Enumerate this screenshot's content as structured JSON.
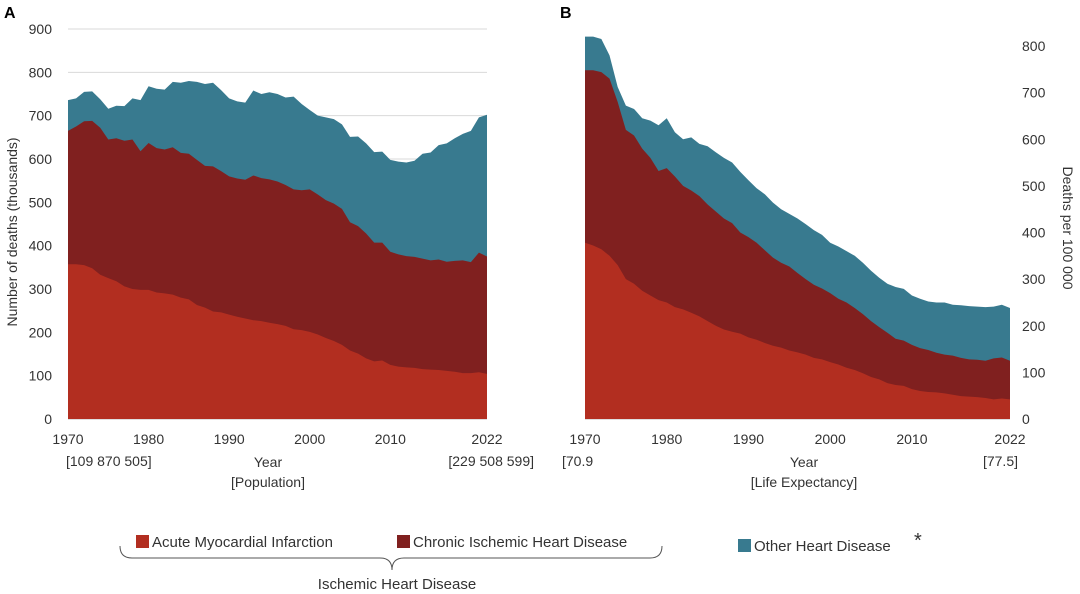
{
  "colors": {
    "acute": "#b22e20",
    "chronic": "#80201f",
    "other": "#387a8f",
    "text": "#333333",
    "grid": "#d9d9d9"
  },
  "legend": {
    "acute": "Acute Myocardial Infarction",
    "chronic": "Chronic Ischemic Heart Disease",
    "other": "Other Heart Disease",
    "other_mark": "*",
    "group": "Ischemic Heart Disease"
  },
  "chart_data": [
    {
      "panel": "A",
      "type": "area",
      "stacked": true,
      "ylabel": "Number of deaths (thousands)",
      "xlabel": "Year",
      "xlabel2": "[Population]",
      "x_tick_labels": [
        "1970",
        "1980",
        "1990",
        "2000",
        "2010",
        "2022"
      ],
      "x_end_labels": {
        "start": "[109 870 505]",
        "end": "[229 508 599]"
      },
      "y_ticks": [
        "0",
        "100",
        "200",
        "300",
        "400",
        "500",
        "600",
        "700",
        "800",
        "900"
      ],
      "ylim": [
        0,
        900
      ],
      "xlim": [
        1970,
        2022
      ],
      "grid": true,
      "x": [
        1970,
        1971,
        1972,
        1973,
        1974,
        1975,
        1976,
        1977,
        1978,
        1979,
        1980,
        1981,
        1982,
        1983,
        1984,
        1985,
        1986,
        1987,
        1988,
        1989,
        1990,
        1991,
        1992,
        1993,
        1994,
        1995,
        1996,
        1997,
        1998,
        1999,
        2000,
        2001,
        2002,
        2003,
        2004,
        2005,
        2006,
        2007,
        2008,
        2009,
        2010,
        2011,
        2012,
        2013,
        2014,
        2015,
        2016,
        2017,
        2018,
        2019,
        2020,
        2021,
        2022
      ],
      "series": [
        {
          "name": "Acute Myocardial Infarction",
          "color_key": "acute",
          "values": [
            357,
            357,
            355,
            348,
            333,
            325,
            318,
            306,
            300,
            298,
            298,
            292,
            290,
            287,
            280,
            276,
            263,
            257,
            248,
            246,
            241,
            236,
            232,
            228,
            226,
            222,
            219,
            215,
            207,
            205,
            201,
            195,
            187,
            180,
            171,
            158,
            151,
            140,
            133,
            135,
            125,
            121,
            119,
            118,
            115,
            114,
            113,
            111,
            109,
            106,
            106,
            108,
            104
          ]
        },
        {
          "name": "Chronic Ischemic Heart Disease",
          "color_key": "chronic",
          "values": [
            665,
            675,
            687,
            688,
            672,
            645,
            648,
            642,
            645,
            618,
            637,
            625,
            622,
            627,
            614,
            612,
            598,
            584,
            583,
            572,
            560,
            555,
            552,
            562,
            556,
            553,
            548,
            540,
            530,
            528,
            530,
            518,
            505,
            497,
            485,
            454,
            445,
            428,
            407,
            407,
            386,
            380,
            376,
            374,
            370,
            366,
            368,
            363,
            365,
            366,
            362,
            384,
            375
          ]
        },
        {
          "name": "Other Heart Disease",
          "color_key": "other",
          "values": [
            736,
            740,
            755,
            756,
            738,
            716,
            723,
            722,
            740,
            736,
            768,
            762,
            760,
            778,
            776,
            780,
            778,
            773,
            776,
            759,
            740,
            733,
            730,
            758,
            750,
            754,
            750,
            742,
            744,
            727,
            713,
            700,
            696,
            692,
            680,
            651,
            652,
            636,
            616,
            617,
            598,
            594,
            592,
            596,
            612,
            615,
            632,
            636,
            648,
            658,
            665,
            696,
            702
          ]
        }
      ]
    },
    {
      "panel": "B",
      "type": "area",
      "stacked": true,
      "ylabel": "Deaths per 100 000",
      "xlabel": "Year",
      "xlabel2": "[Life Expectancy]",
      "x_tick_labels": [
        "1970",
        "1980",
        "1990",
        "2000",
        "2010",
        "2022"
      ],
      "x_end_labels": {
        "start": "[70.9",
        "end": "[77.5]"
      },
      "y_ticks": [
        "0",
        "100",
        "200",
        "300",
        "400",
        "500",
        "600",
        "700",
        "800"
      ],
      "ylim": [
        0,
        800
      ],
      "xlim": [
        1970,
        2022
      ],
      "grid": false,
      "x": [
        1970,
        1971,
        1972,
        1973,
        1974,
        1975,
        1976,
        1977,
        1978,
        1979,
        1980,
        1981,
        1982,
        1983,
        1984,
        1985,
        1986,
        1987,
        1988,
        1989,
        1990,
        1991,
        1992,
        1993,
        1994,
        1995,
        1996,
        1997,
        1998,
        1999,
        2000,
        2001,
        2002,
        2003,
        2004,
        2005,
        2006,
        2007,
        2008,
        2009,
        2010,
        2011,
        2012,
        2013,
        2014,
        2015,
        2016,
        2017,
        2018,
        2019,
        2020,
        2021,
        2022
      ],
      "series": [
        {
          "name": "Acute Myocardial Infarction",
          "color_key": "acute",
          "values": [
            378,
            372,
            364,
            350,
            330,
            300,
            290,
            275,
            265,
            255,
            250,
            240,
            235,
            228,
            220,
            210,
            200,
            192,
            187,
            183,
            175,
            170,
            163,
            157,
            153,
            147,
            143,
            138,
            131,
            128,
            122,
            117,
            110,
            105,
            98,
            90,
            85,
            77,
            73,
            71,
            64,
            60,
            58,
            57,
            55,
            52,
            49,
            48,
            47,
            45,
            42,
            44,
            42
          ]
        },
        {
          "name": "Chronic Ischemic Heart Disease",
          "color_key": "chronic",
          "values": [
            748,
            748,
            744,
            730,
            680,
            620,
            608,
            580,
            560,
            532,
            538,
            520,
            500,
            490,
            478,
            460,
            445,
            430,
            420,
            400,
            390,
            378,
            362,
            346,
            335,
            327,
            313,
            300,
            288,
            280,
            270,
            258,
            250,
            238,
            225,
            210,
            197,
            185,
            172,
            168,
            159,
            152,
            148,
            142,
            138,
            136,
            131,
            128,
            127,
            125,
            130,
            132,
            125
          ]
        },
        {
          "name": "Other Heart Disease",
          "color_key": "other",
          "values": [
            820,
            820,
            815,
            780,
            712,
            672,
            665,
            645,
            640,
            630,
            645,
            615,
            600,
            604,
            590,
            585,
            572,
            560,
            550,
            530,
            512,
            495,
            482,
            464,
            450,
            440,
            430,
            418,
            405,
            395,
            378,
            370,
            360,
            350,
            335,
            318,
            303,
            290,
            283,
            279,
            265,
            258,
            252,
            250,
            250,
            245,
            244,
            242,
            241,
            240,
            241,
            245,
            238
          ]
        }
      ]
    }
  ]
}
